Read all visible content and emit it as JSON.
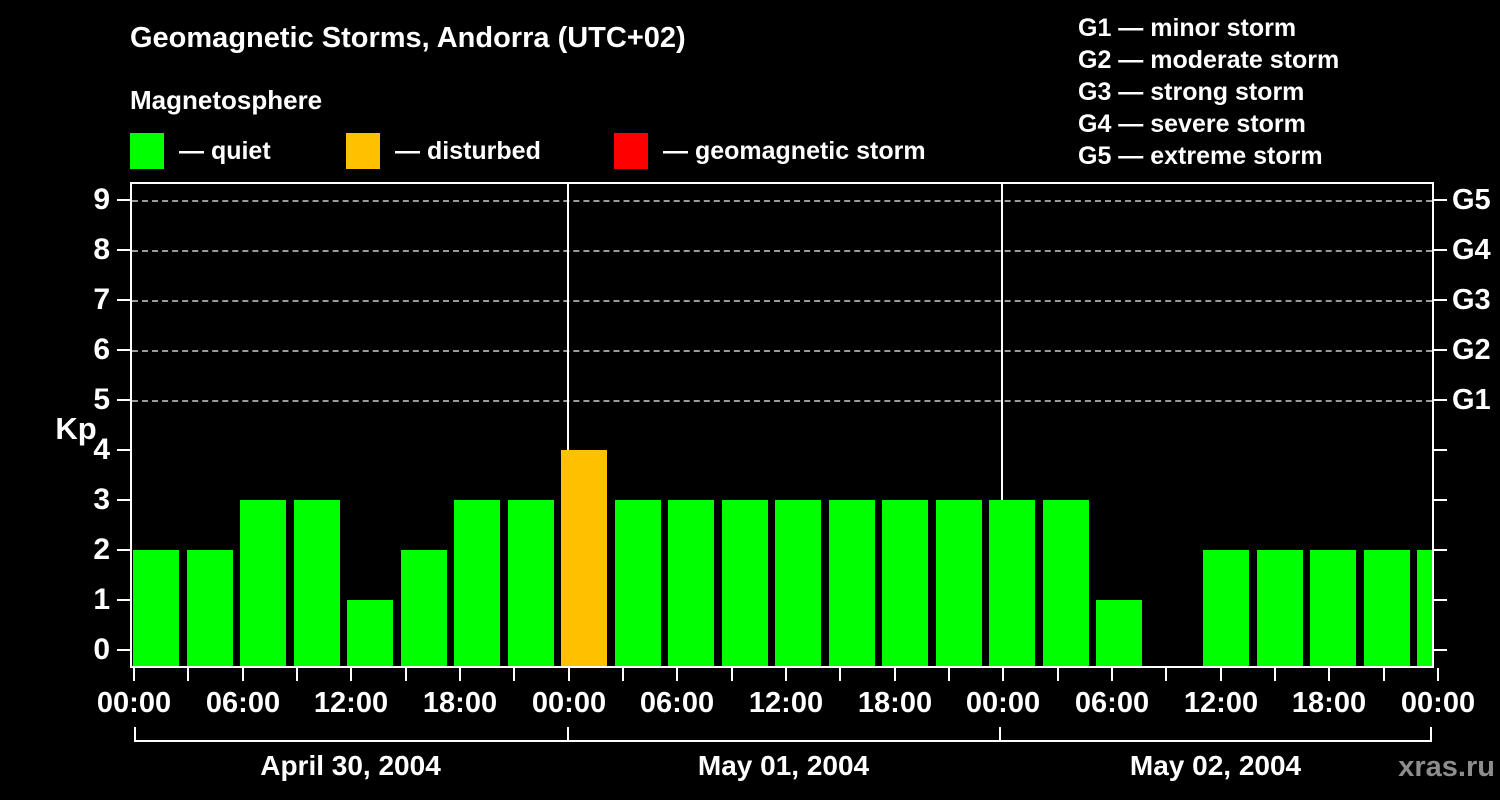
{
  "header": {
    "title": "Geomagnetic Storms, Andorra (UTC+02)",
    "subtitle": "Magnetosphere"
  },
  "legend": {
    "items": [
      {
        "status": "quiet",
        "label": "— quiet"
      },
      {
        "status": "disturbed",
        "label": "— disturbed"
      },
      {
        "status": "storm",
        "label": "— geomagnetic storm"
      }
    ]
  },
  "g_scale_legend": {
    "items": [
      {
        "code": "G1",
        "label": "G1 — minor storm"
      },
      {
        "code": "G2",
        "label": "G2 — moderate storm"
      },
      {
        "code": "G3",
        "label": "G3 — strong storm"
      },
      {
        "code": "G4",
        "label": "G4 — severe storm"
      },
      {
        "code": "G5",
        "label": "G5 — extreme storm"
      }
    ]
  },
  "chart_data": {
    "type": "bar",
    "title": "Geomagnetic Storms, Andorra (UTC+02)",
    "subtitle": "Magnetosphere",
    "ylabel": "Kp",
    "ylim": [
      0,
      9.7
    ],
    "y_ticks": [
      0,
      1,
      2,
      3,
      4,
      5,
      6,
      7,
      8,
      9
    ],
    "grid": "dashed horizontal lines at Kp 5,6,7,8,9",
    "legend_position": "top",
    "slot_hours": 3,
    "x_time_labels": [
      "00:00",
      "06:00",
      "12:00",
      "18:00",
      "00:00",
      "06:00",
      "12:00",
      "18:00",
      "00:00",
      "06:00",
      "12:00",
      "18:00",
      "00:00"
    ],
    "days": [
      {
        "date": "April 30, 2004",
        "values": [
          2,
          2,
          3,
          3,
          1,
          2,
          3,
          3
        ],
        "statuses": [
          "quiet",
          "quiet",
          "quiet",
          "quiet",
          "quiet",
          "quiet",
          "quiet",
          "quiet"
        ]
      },
      {
        "date": "May 01, 2004",
        "values": [
          4,
          3,
          3,
          3,
          3,
          3,
          3,
          3
        ],
        "statuses": [
          "disturbed",
          "quiet",
          "quiet",
          "quiet",
          "quiet",
          "quiet",
          "quiet",
          "quiet"
        ]
      },
      {
        "date": "May 02, 2004",
        "values": [
          3,
          3,
          1,
          null,
          2,
          2,
          2,
          2
        ],
        "statuses": [
          "quiet",
          "quiet",
          "quiet",
          null,
          "quiet",
          "quiet",
          "quiet",
          "quiet"
        ]
      }
    ],
    "partial_next_bar": {
      "value": 2,
      "status": "quiet"
    },
    "g_levels": [
      {
        "label": "G1",
        "kp": 5
      },
      {
        "label": "G2",
        "kp": 6
      },
      {
        "label": "G3",
        "kp": 7
      },
      {
        "label": "G4",
        "kp": 8
      },
      {
        "label": "G5",
        "kp": 9
      }
    ],
    "status_colors": {
      "quiet": "#00ff00",
      "disturbed": "#ffc000",
      "storm": "#ff0000"
    },
    "axis_color": "#ffffff",
    "gridline_color": "#9b9b9b",
    "background_color": "#000000"
  },
  "watermark": "xras.ru"
}
